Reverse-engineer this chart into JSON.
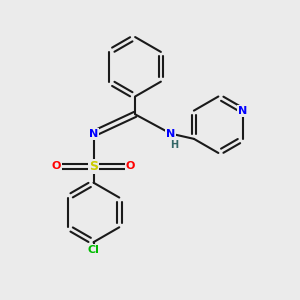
{
  "background_color": "#ebebeb",
  "bond_color": "#1a1a1a",
  "bond_width": 1.5,
  "atom_colors": {
    "N": "#0000ff",
    "S": "#cccc00",
    "O": "#ff0000",
    "Cl": "#00bb00",
    "C": "#1a1a1a",
    "H": "#336666"
  },
  "font_size_atom": 8,
  "figsize": [
    3.0,
    3.0
  ],
  "dpi": 100
}
